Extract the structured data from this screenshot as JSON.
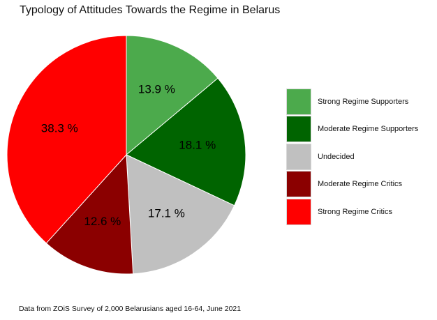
{
  "chart_data": {
    "type": "pie",
    "title": "Typology of Attitudes Towards the Regime in Belarus",
    "caption": "Data from ZOiS Survey of 2,000 Belarusians aged 16-64, June 2021",
    "legend_position": "right",
    "slices": [
      {
        "name": "Strong Regime Supporters",
        "value": 13.9,
        "label": "13.9 %",
        "color": "#4caa4c"
      },
      {
        "name": "Moderate Regime Supporters",
        "value": 18.1,
        "label": "18.1 %",
        "color": "#006400"
      },
      {
        "name": "Undecided",
        "value": 17.1,
        "label": "17.1 %",
        "color": "#c0c0c0"
      },
      {
        "name": "Moderate Regime Critics",
        "value": 12.6,
        "label": "12.6 %",
        "color": "#8b0000"
      },
      {
        "name": "Strong Regime Critics",
        "value": 38.3,
        "label": "38.3 %",
        "color": "#ff0000"
      }
    ]
  }
}
